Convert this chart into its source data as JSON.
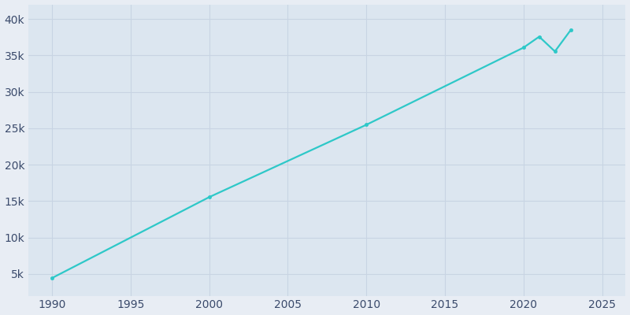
{
  "years": [
    1990,
    2000,
    2010,
    2020,
    2021,
    2022,
    2023
  ],
  "population": [
    4437,
    15540,
    25471,
    36063,
    37567,
    35542,
    38462
  ],
  "line_color": "#2ec8c8",
  "marker": "o",
  "marker_size": 3,
  "bg_color": "#e8edf4",
  "plot_bg_color": "#dce6f0",
  "grid_color": "#c8d4e3",
  "tick_color": "#3a4a6b",
  "xlim": [
    1988.5,
    2026.5
  ],
  "ylim": [
    2000,
    42000
  ],
  "xticks": [
    1990,
    1995,
    2000,
    2005,
    2010,
    2015,
    2020,
    2025
  ],
  "yticks": [
    5000,
    10000,
    15000,
    20000,
    25000,
    30000,
    35000,
    40000
  ],
  "ytick_labels": [
    "5k",
    "10k",
    "15k",
    "20k",
    "25k",
    "30k",
    "35k",
    "40k"
  ],
  "figsize": [
    8.0,
    4.0
  ],
  "dpi": 100
}
